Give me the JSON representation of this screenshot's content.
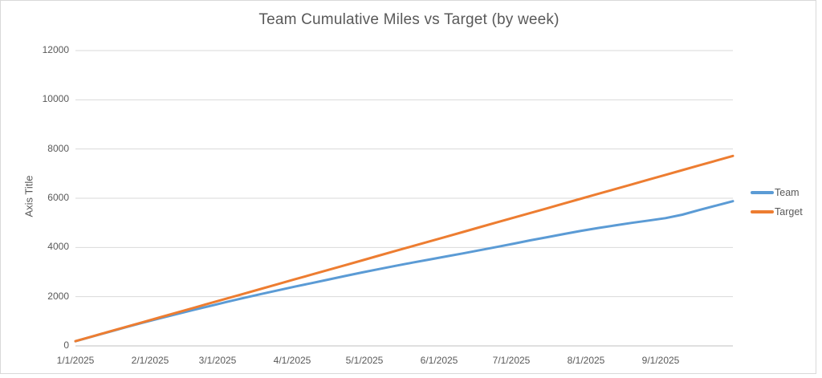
{
  "frame": {
    "border_color": "#D9D9D9",
    "background": "#FFFFFF",
    "text_color": "#595959"
  },
  "chart_data": {
    "type": "line",
    "title": "Team Cumulative Miles vs Target (by week)",
    "y_axis_title": "Axis Title",
    "xlabel": "",
    "ylim": [
      0,
      12000
    ],
    "y_ticks": [
      0,
      2000,
      4000,
      6000,
      8000,
      10000,
      12000
    ],
    "x_tick_labels": [
      "1/1/2025",
      "2/1/2025",
      "3/1/2025",
      "4/1/2025",
      "5/1/2025",
      "6/1/2025",
      "7/1/2025",
      "8/1/2025",
      "9/1/2025"
    ],
    "grid": "horizontal",
    "gridline_color": "#D9D9D9",
    "axis_line_color": "#BFBFBF",
    "legend_position": "right",
    "x_unit": "week",
    "x": [
      "1/1/2025",
      "1/8/2025",
      "1/15/2025",
      "1/22/2025",
      "1/29/2025",
      "2/5/2025",
      "2/12/2025",
      "2/19/2025",
      "2/26/2025",
      "3/5/2025",
      "3/12/2025",
      "3/19/2025",
      "3/26/2025",
      "4/2/2025",
      "4/9/2025",
      "4/16/2025",
      "4/23/2025",
      "4/30/2025",
      "5/7/2025",
      "5/14/2025",
      "5/21/2025",
      "5/28/2025",
      "6/4/2025",
      "6/11/2025",
      "6/18/2025",
      "6/25/2025",
      "7/2/2025",
      "7/9/2025",
      "7/16/2025",
      "7/23/2025",
      "7/30/2025",
      "8/6/2025",
      "8/13/2025",
      "8/20/2025",
      "8/27/2025",
      "9/3/2025",
      "9/10/2025",
      "9/17/2025",
      "9/24/2025",
      "10/1/2025"
    ],
    "series": [
      {
        "name": "Team",
        "color": "#5B9BD5",
        "values": [
          190,
          380,
          570,
          760,
          945,
          1120,
          1290,
          1460,
          1625,
          1790,
          1950,
          2105,
          2255,
          2405,
          2550,
          2695,
          2840,
          2985,
          3120,
          3255,
          3385,
          3510,
          3635,
          3760,
          3890,
          4020,
          4155,
          4290,
          4420,
          4550,
          4675,
          4790,
          4895,
          5000,
          5095,
          5190,
          5330,
          5520,
          5700,
          5880
        ]
      },
      {
        "name": "Target",
        "color": "#ED7D31",
        "values": [
          193,
          386,
          579,
          772,
          965,
          1158,
          1351,
          1544,
          1737,
          1930,
          2123,
          2316,
          2509,
          2702,
          2895,
          3088,
          3281,
          3474,
          3667,
          3860,
          4053,
          4246,
          4439,
          4632,
          4825,
          5018,
          5211,
          5404,
          5597,
          5790,
          5983,
          6176,
          6369,
          6562,
          6755,
          6948,
          7141,
          7334,
          7527,
          7720
        ]
      }
    ]
  }
}
